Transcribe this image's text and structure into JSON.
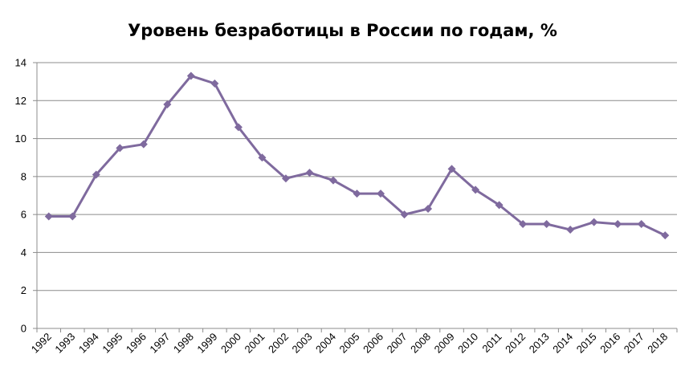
{
  "chart_data": {
    "type": "line",
    "title": "Уровень безработицы в России по годам, %",
    "xlabel": "",
    "ylabel": "",
    "x": [
      "1992",
      "1993",
      "1994",
      "1995",
      "1996",
      "1997",
      "1998",
      "1999",
      "2000",
      "2001",
      "2002",
      "2003",
      "2004",
      "2005",
      "2006",
      "2007",
      "2008",
      "2009",
      "2010",
      "2011",
      "2012",
      "2013",
      "2014",
      "2015",
      "2016",
      "2017",
      "2018"
    ],
    "series": [
      {
        "values": [
          5.9,
          5.9,
          8.1,
          9.5,
          9.7,
          11.8,
          13.3,
          12.9,
          10.6,
          9.0,
          7.9,
          8.2,
          7.8,
          7.1,
          7.1,
          6.0,
          6.3,
          8.4,
          7.3,
          6.5,
          5.5,
          5.5,
          5.2,
          5.6,
          5.5,
          5.5,
          4.9
        ],
        "color": "#7f6a9e",
        "marker": "diamond"
      }
    ],
    "ylim": [
      0,
      14
    ],
    "yticks": [
      0,
      2,
      4,
      6,
      8,
      10,
      12,
      14
    ],
    "grid": true,
    "legend": "none",
    "colors": {
      "line": "#7f6a9e",
      "grid": "#8c8c8c",
      "axis": "#8c8c8c"
    }
  }
}
